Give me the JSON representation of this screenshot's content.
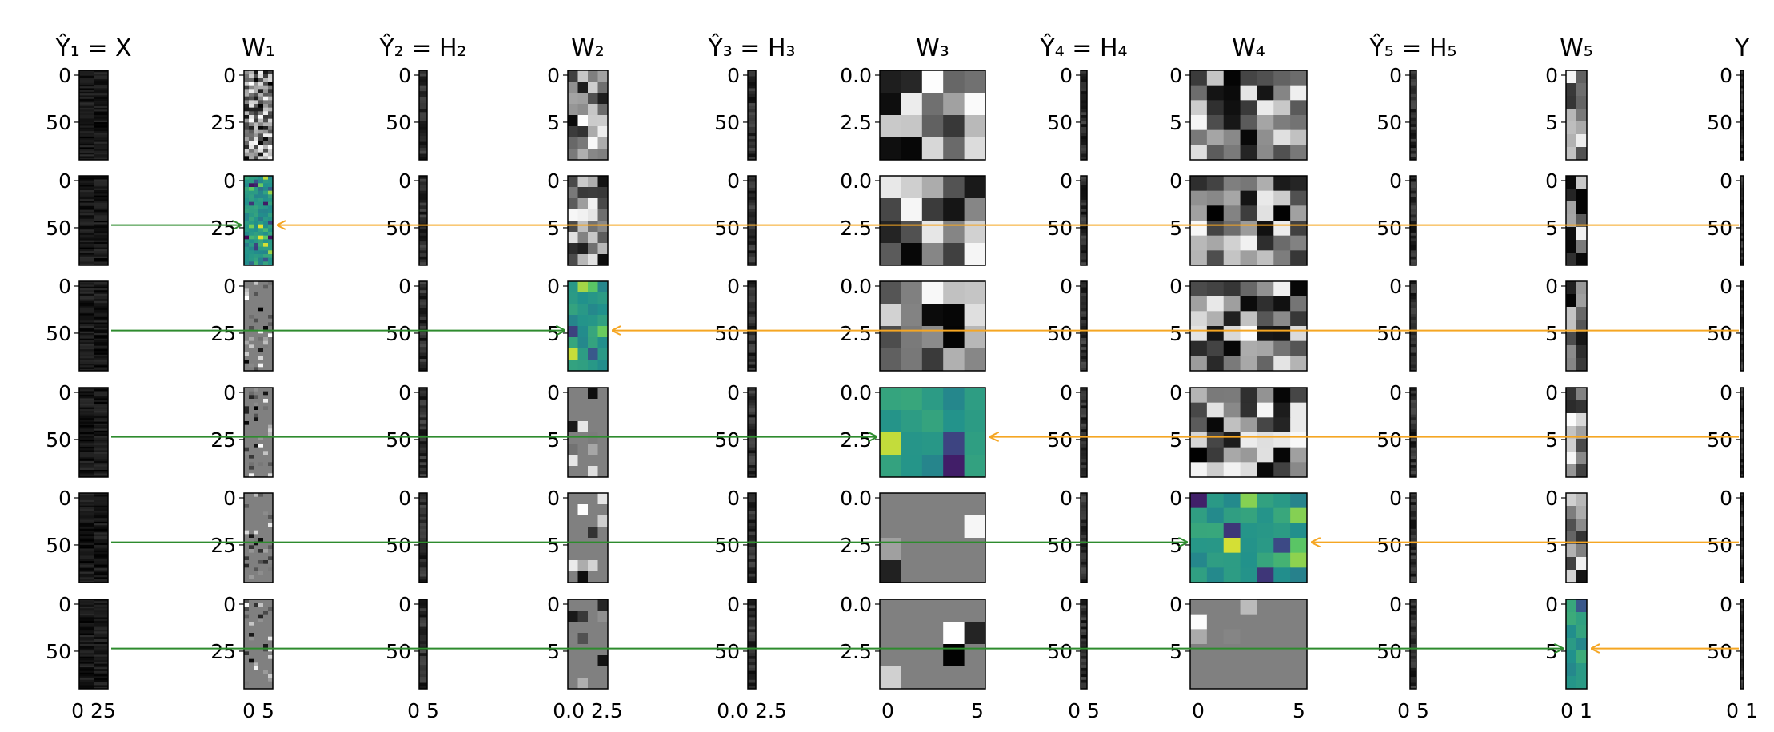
{
  "column_titles": [
    "Ŷ₁ = X",
    "W₁",
    "Ŷ₂ = H₂",
    "W₂",
    "Ŷ₃ = H₃",
    "W₃",
    "Ŷ₄ = H₄",
    "W₄",
    "Ŷ₅ = H₅",
    "W₅",
    "Y"
  ],
  "colors": {
    "forward_arrow": "#2e8b2e",
    "backward_arrow": "#f5a623",
    "viridis_low": "#440154",
    "viridis_mid": "#21918c",
    "viridis_high": "#fde725"
  },
  "ytick_labels": {
    "c0": [
      "0",
      "50"
    ],
    "c1": [
      "0",
      "25"
    ],
    "c2": [
      "0",
      "50"
    ],
    "c3": [
      "0",
      "5"
    ],
    "c4": [
      "0",
      "50"
    ],
    "c5": [
      "0.0",
      "2.5"
    ],
    "c6": [
      "0",
      "50"
    ],
    "c7": [
      "0",
      "5"
    ],
    "c8": [
      "0",
      "50"
    ],
    "c9": [
      "0",
      "5"
    ],
    "c10": [
      "0",
      "50"
    ]
  },
  "xtick_labels_bottom": {
    "c0": "0 25",
    "c1": "0 5",
    "c2": "0 5",
    "c3": "0.0 2.5",
    "c4": "0.0 2.5",
    "c5": [
      "0",
      "5"
    ],
    "c6": "0 5",
    "c7": [
      "0",
      "5"
    ],
    "c8": "0 5",
    "c9": "0 1",
    "c10": "0 1"
  },
  "highlighted_panels": [
    {
      "row": 1,
      "col": 1
    },
    {
      "row": 2,
      "col": 3
    },
    {
      "row": 3,
      "col": 5
    },
    {
      "row": 4,
      "col": 7
    },
    {
      "row": 5,
      "col": 9
    }
  ]
}
